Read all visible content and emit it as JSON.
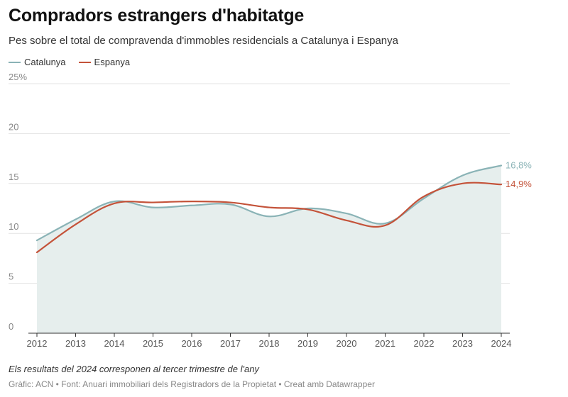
{
  "header": {
    "title": "Compradors estrangers d'habitatge",
    "subtitle": "Pes sobre el total de compravenda d'immobles residencials a Catalunya i Espanya"
  },
  "legend": [
    {
      "label": "Catalunya",
      "color": "#8ab3b6"
    },
    {
      "label": "Espanya",
      "color": "#c4533a"
    }
  ],
  "footer": {
    "note": "Els resultats del 2024 corresponen al tercer trimestre de l'any",
    "source": "Gràfic: ACN • Font: Anuari immobiliari dels Registradors de la Propietat • Creat amb Datawrapper"
  },
  "chart_data": {
    "type": "line",
    "x": [
      2012,
      2013,
      2014,
      2015,
      2016,
      2017,
      2018,
      2019,
      2020,
      2021,
      2022,
      2023,
      2024
    ],
    "x_tick_labels": [
      "2012",
      "2013",
      "2014",
      "2015",
      "2016",
      "2017",
      "2018",
      "2019",
      "2020",
      "2021",
      "2022",
      "2023",
      "2024"
    ],
    "ylim": [
      0,
      25
    ],
    "y_ticks": [
      0,
      5,
      10,
      15,
      20,
      25
    ],
    "y_tick_labels": [
      "0",
      "5",
      "10",
      "15",
      "20",
      "25%"
    ],
    "grid": true,
    "legend_position": "top-left",
    "series": [
      {
        "name": "Catalunya",
        "color": "#8ab3b6",
        "area_fill": "#e6eeed",
        "values": [
          9.3,
          11.4,
          13.2,
          12.6,
          12.8,
          12.9,
          11.7,
          12.5,
          12.0,
          11.0,
          13.5,
          15.8,
          16.8
        ],
        "end_label": "16,8%"
      },
      {
        "name": "Espanya",
        "color": "#c4533a",
        "values": [
          8.1,
          10.9,
          13.0,
          13.1,
          13.2,
          13.1,
          12.6,
          12.4,
          11.3,
          10.8,
          13.7,
          15.0,
          14.9
        ],
        "end_label": "14,9%"
      }
    ]
  }
}
